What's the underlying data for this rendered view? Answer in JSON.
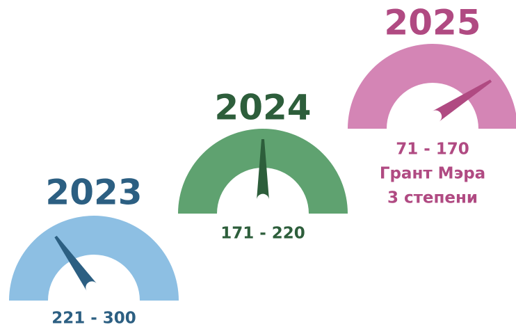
{
  "gauges": [
    {
      "year": "2023",
      "lines": [
        "221 - 300"
      ]
    },
    {
      "year": "2024",
      "lines": [
        "171 - 220"
      ]
    },
    {
      "year": "2025",
      "lines": [
        "71 - 170",
        "Грант Мэра",
        "3 степени"
      ]
    }
  ]
}
